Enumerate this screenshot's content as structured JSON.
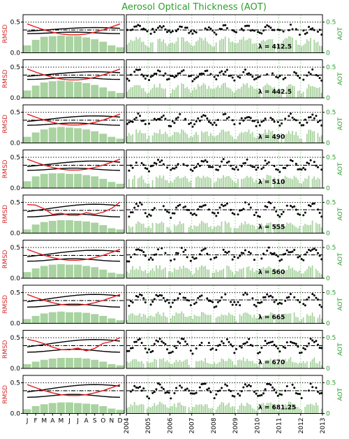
{
  "colors": {
    "title": "#2ca02c",
    "rmsd_axis": "#d62728",
    "aot_axis": "#2ca02c",
    "bar_fill": "#a9d3a0",
    "red_line": "#e8191a",
    "black": "#000000",
    "vline": "#8fd18f"
  },
  "chart_data": {
    "type": "panel-grid",
    "title": "Aerosol Optical Thickness (AOT)",
    "left_ylabel": "RMSD",
    "right_ylabel": "AOT",
    "left_yticks": [
      "0.0",
      "0.5"
    ],
    "right_yticks": [
      "0",
      "0.5"
    ],
    "left_ylim": [
      0,
      0.62
    ],
    "right_ylim": [
      0,
      0.62
    ],
    "months": [
      "J",
      "F",
      "M",
      "A",
      "M",
      "J",
      "J",
      "A",
      "S",
      "O",
      "N",
      "D"
    ],
    "year_ticks": [
      "2004",
      "2005",
      "2006",
      "2007",
      "2008",
      "2009",
      "2010",
      "2011",
      "2012",
      "2013"
    ],
    "xlim_years": [
      2004,
      2013
    ],
    "panels": [
      {
        "lambda_label": "λ = 412.5",
        "seasonal_bars": [
          0.12,
          0.21,
          0.26,
          0.27,
          0.28,
          0.27,
          0.27,
          0.25,
          0.22,
          0.18,
          0.12,
          0.09
        ],
        "ts_mean": 0.37,
        "amp": 0.04,
        "bar_level": 0.22
      },
      {
        "lambda_label": "λ = 442.5",
        "seasonal_bars": [
          0.12,
          0.2,
          0.25,
          0.27,
          0.28,
          0.27,
          0.26,
          0.24,
          0.21,
          0.17,
          0.11,
          0.08
        ],
        "ts_mean": 0.37,
        "amp": 0.05,
        "bar_level": 0.2
      },
      {
        "lambda_label": "λ = 490",
        "seasonal_bars": [
          0.1,
          0.17,
          0.22,
          0.25,
          0.26,
          0.25,
          0.24,
          0.22,
          0.19,
          0.15,
          0.1,
          0.07
        ],
        "ts_mean": 0.37,
        "amp": 0.06,
        "bar_level": 0.18
      },
      {
        "lambda_label": "λ = 510",
        "seasonal_bars": [
          0.11,
          0.19,
          0.23,
          0.24,
          0.24,
          0.23,
          0.23,
          0.21,
          0.19,
          0.15,
          0.1,
          0.07
        ],
        "ts_mean": 0.37,
        "amp": 0.06,
        "bar_level": 0.18
      },
      {
        "lambda_label": "λ = 555",
        "seasonal_bars": [
          0.06,
          0.14,
          0.18,
          0.2,
          0.21,
          0.21,
          0.2,
          0.19,
          0.17,
          0.13,
          0.08,
          0.06
        ],
        "ts_mean": 0.38,
        "amp": 0.08,
        "bar_level": 0.16
      },
      {
        "lambda_label": "λ = 560",
        "seasonal_bars": [
          0.1,
          0.16,
          0.2,
          0.22,
          0.23,
          0.22,
          0.22,
          0.2,
          0.18,
          0.14,
          0.09,
          0.07
        ],
        "ts_mean": 0.38,
        "amp": 0.07,
        "bar_level": 0.17
      },
      {
        "lambda_label": "λ = 665",
        "seasonal_bars": [
          0.07,
          0.12,
          0.16,
          0.18,
          0.19,
          0.18,
          0.18,
          0.17,
          0.15,
          0.12,
          0.08,
          0.05
        ],
        "ts_mean": 0.38,
        "amp": 0.08,
        "bar_level": 0.15
      },
      {
        "lambda_label": "λ = 670",
        "seasonal_bars": [
          0.07,
          0.11,
          0.14,
          0.16,
          0.17,
          0.17,
          0.17,
          0.16,
          0.14,
          0.11,
          0.07,
          0.05
        ],
        "ts_mean": 0.37,
        "amp": 0.08,
        "bar_level": 0.14
      },
      {
        "lambda_label": "λ = 681.25",
        "seasonal_bars": [
          0.07,
          0.12,
          0.15,
          0.17,
          0.18,
          0.18,
          0.17,
          0.16,
          0.15,
          0.12,
          0.08,
          0.06
        ],
        "ts_mean": 0.37,
        "amp": 0.08,
        "bar_level": 0.15
      }
    ]
  }
}
